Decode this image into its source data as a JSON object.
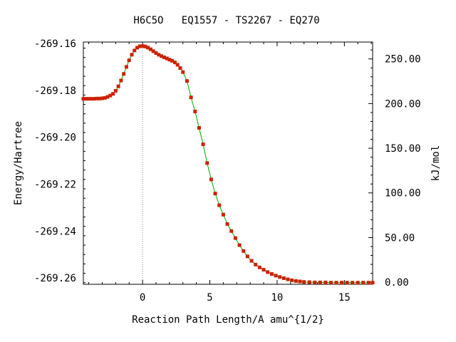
{
  "chart_data": {
    "type": "line",
    "title": "H6C5O   EQ1557 - TS2267 - EQ270",
    "xlabel": "Reaction Path Length/A amu^{1/2}",
    "ylabel": "Energy/Hartree",
    "y2label": "kJ/mol",
    "xlim": [
      -4.4,
      17.1
    ],
    "ylim": [
      -269.2627,
      -269.1594
    ],
    "y2lim": [
      -2.3,
      268.9
    ],
    "x_ticks": [
      0,
      5,
      10,
      15
    ],
    "x_tick_labels": [
      "0",
      "5",
      "10",
      "15"
    ],
    "y_ticks": [
      -269.16,
      -269.18,
      -269.2,
      -269.22,
      -269.24,
      -269.26
    ],
    "y_tick_labels": [
      "-269.16",
      "-269.18",
      "-269.20",
      "-269.22",
      "-269.24",
      "-269.26"
    ],
    "y2_ticks": [
      250,
      200,
      150,
      100,
      50,
      0
    ],
    "y2_tick_labels": [
      "250.00",
      "200.00",
      "150.00",
      "100.00",
      "50.00",
      "0.00"
    ],
    "ts_x": 0,
    "grid": false,
    "line_color": "#00aa00",
    "marker_color": "#cc2200",
    "series": [
      {
        "x": [
          -4.4,
          -4.2,
          -4.0,
          -3.8,
          -3.6,
          -3.4,
          -3.2,
          -3.0,
          -2.8,
          -2.6,
          -2.4,
          -2.2,
          -2.0,
          -1.8,
          -1.6,
          -1.4,
          -1.2,
          -1.0,
          -0.8,
          -0.6,
          -0.4,
          -0.2,
          0.0,
          0.2,
          0.4,
          0.6,
          0.8,
          1.0,
          1.2,
          1.4,
          1.6,
          1.8,
          2.0,
          2.2,
          2.4,
          2.6,
          2.8,
          3.0,
          3.3,
          3.6,
          3.9,
          4.2,
          4.5,
          4.8,
          5.1,
          5.4,
          5.7,
          6.0,
          6.3,
          6.6,
          6.9,
          7.2,
          7.5,
          7.8,
          8.1,
          8.4,
          8.7,
          9.0,
          9.3,
          9.6,
          9.9,
          10.2,
          10.5,
          10.8,
          11.1,
          11.4,
          11.7,
          12.0,
          12.4,
          12.8,
          13.2,
          13.6,
          14.0,
          14.4,
          14.8,
          15.2,
          15.6,
          16.0,
          16.4,
          16.8,
          17.1
        ],
        "y": [
          -269.1836,
          -269.1836,
          -269.1836,
          -269.1836,
          -269.1836,
          -269.1835,
          -269.1835,
          -269.1834,
          -269.1832,
          -269.1828,
          -269.1822,
          -269.1815,
          -269.1802,
          -269.1783,
          -269.1758,
          -269.173,
          -269.17,
          -269.1672,
          -269.1648,
          -269.163,
          -269.1618,
          -269.1612,
          -269.1611,
          -269.1613,
          -269.1618,
          -269.1625,
          -269.1633,
          -269.1641,
          -269.1648,
          -269.1654,
          -269.1659,
          -269.1664,
          -269.1669,
          -269.1674,
          -269.1681,
          -269.1691,
          -269.1705,
          -269.1722,
          -269.176,
          -269.183,
          -269.189,
          -269.196,
          -269.203,
          -269.211,
          -269.218,
          -269.224,
          -269.229,
          -269.233,
          -269.237,
          -269.24,
          -269.243,
          -269.246,
          -269.2485,
          -269.2508,
          -269.2527,
          -269.2543,
          -269.2555,
          -269.2565,
          -269.2575,
          -269.2583,
          -269.259,
          -269.2596,
          -269.2601,
          -269.2606,
          -269.261,
          -269.2613,
          -269.2615,
          -269.2617,
          -269.2618,
          -269.2619,
          -269.2619,
          -269.2619,
          -269.262,
          -269.262,
          -269.262,
          -269.262,
          -269.262,
          -269.262,
          -269.262,
          -269.262,
          -269.262
        ]
      }
    ]
  }
}
